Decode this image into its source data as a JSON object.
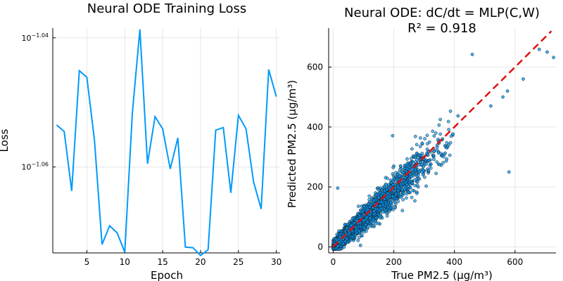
{
  "chart_data": [
    {
      "type": "line",
      "title": "Neural ODE Training Loss",
      "xlabel": "Epoch",
      "ylabel": "Loss",
      "yscale": "log10",
      "grid": true,
      "legend": "none",
      "xlim": [
        0.5,
        30.5
      ],
      "ylim_log10": [
        -1.0733,
        -1.0385
      ],
      "xticks": [
        5,
        10,
        15,
        20,
        25,
        30
      ],
      "yticks_log10": [
        -1.04,
        -1.06
      ],
      "ytick_labels": [
        {
          "base": "10",
          "exp": "−1.04"
        },
        {
          "base": "10",
          "exp": "−1.06"
        }
      ],
      "color": "#009AFA",
      "series": [
        {
          "x": [
            1,
            2,
            3,
            4,
            5,
            6,
            7,
            8,
            9,
            10,
            11,
            12,
            13,
            14,
            15,
            16,
            17,
            18,
            19,
            20,
            21,
            22,
            23,
            24,
            25,
            26,
            27,
            28,
            29,
            30
          ],
          "log10_values": [
            -1.0535,
            -1.0545,
            -1.0637,
            -1.0451,
            -1.0461,
            -1.0558,
            -1.072,
            -1.0691,
            -1.0702,
            -1.0732,
            -1.0516,
            -1.0387,
            -1.0595,
            -1.0522,
            -1.0541,
            -1.0603,
            -1.0555,
            -1.0724,
            -1.0725,
            -1.0737,
            -1.0728,
            -1.0543,
            -1.0539,
            -1.064,
            -1.052,
            -1.0541,
            -1.0623,
            -1.0665,
            -1.0449,
            -1.0491
          ]
        }
      ]
    },
    {
      "type": "scatter",
      "title": "Neural ODE: dC/dt = MLP(C,W)",
      "subtitle": "R² = 0.918",
      "xlabel": "True PM2.5 (μg/m³)",
      "ylabel": "Predicted PM2.5 (μg/m³)",
      "grid": true,
      "legend": "none",
      "xlim": [
        -15,
        735
      ],
      "ylim": [
        -20,
        730
      ],
      "xticks": [
        0,
        200,
        400,
        600
      ],
      "yticks": [
        0,
        200,
        400,
        600
      ],
      "point_color": "#009AFA",
      "point_outline": "#1a1a1a",
      "reference_line": {
        "x": [
          0,
          720
        ],
        "y": [
          0,
          720
        ],
        "color": "#E01010",
        "style": "dashed"
      },
      "highlighted_points": [
        {
          "x": 459,
          "y": 642
        },
        {
          "x": 575,
          "y": 520
        },
        {
          "x": 580,
          "y": 250
        },
        {
          "x": 727,
          "y": 632
        },
        {
          "x": 706,
          "y": 650
        },
        {
          "x": 680,
          "y": 659
        },
        {
          "x": 196,
          "y": 371
        },
        {
          "x": 412,
          "y": 437
        },
        {
          "x": 520,
          "y": 470
        },
        {
          "x": 560,
          "y": 500
        },
        {
          "x": 627,
          "y": 560
        },
        {
          "x": 15,
          "y": 196
        },
        {
          "x": 90,
          "y": 5
        }
      ],
      "bulk_cloud_description_points": 3500
    }
  ]
}
